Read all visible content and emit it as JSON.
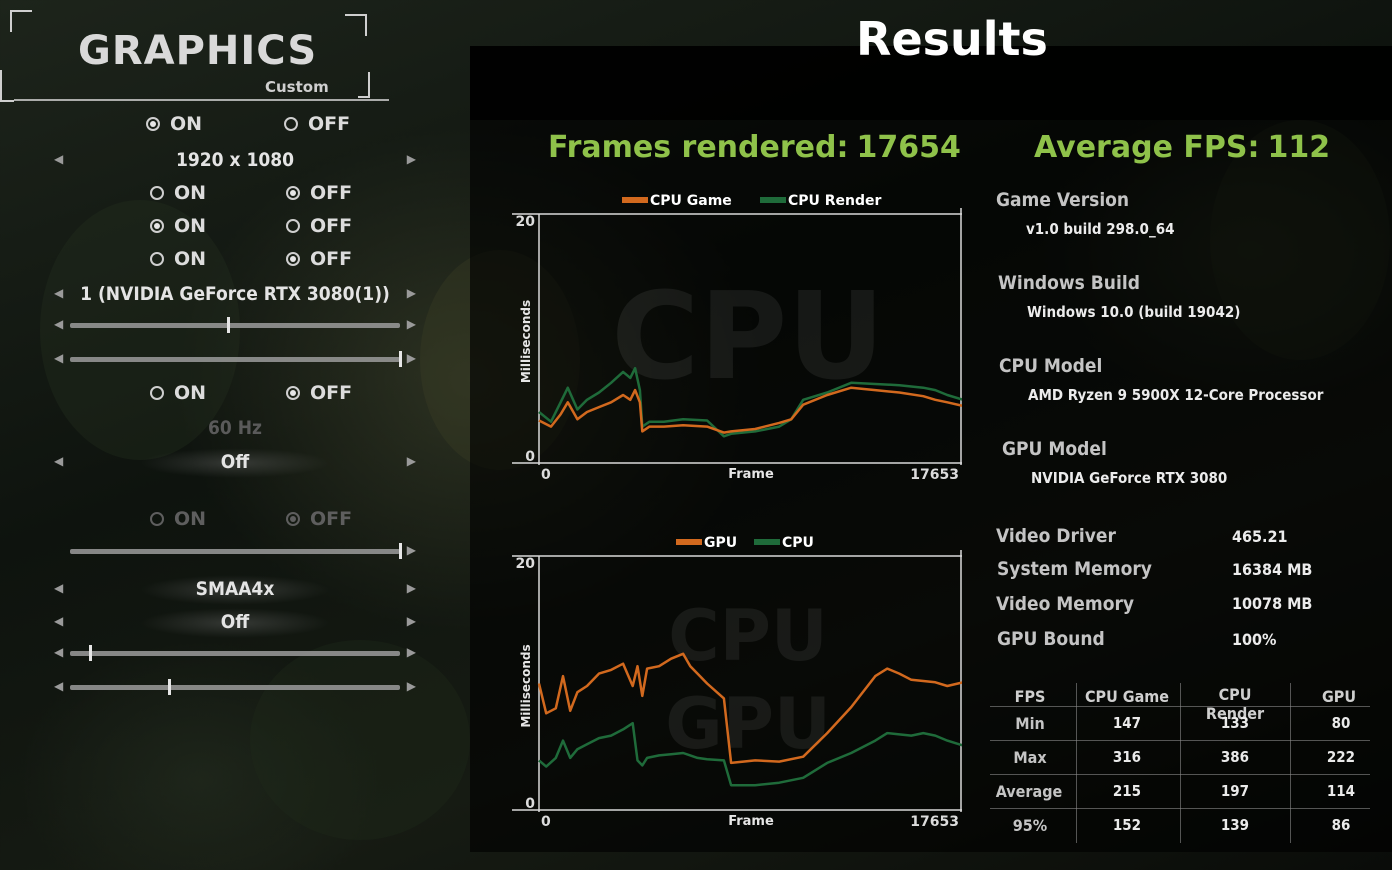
{
  "graphics_panel": {
    "title": "GRAPHICS",
    "subtitle": "Custom",
    "on_label": "ON",
    "off_label": "OFF",
    "radio_rows": [
      {
        "selected": "on",
        "enabled": true
      },
      {
        "selected": "off",
        "enabled": true
      },
      {
        "selected": "on",
        "enabled": true
      },
      {
        "selected": "off",
        "enabled": true
      },
      {
        "selected": "off",
        "enabled": true
      },
      {
        "selected": "off",
        "enabled": false
      }
    ],
    "resolution": "1920 x 1080",
    "adapter": "1 (NVIDIA GeForce RTX 3080(1))",
    "refresh_rate": "60 Hz",
    "selector_off_1": "Off",
    "antialiasing": "SMAA4x",
    "selector_off_2": "Off",
    "slider_levels": [
      0.48,
      1.0,
      1.0,
      0.06,
      0.3
    ]
  },
  "results": {
    "title": "Results",
    "frames_rendered_label": "Frames rendered:",
    "frames_rendered_value": "17654",
    "average_fps_label": "Average FPS:",
    "average_fps_value": "112",
    "info": [
      {
        "label": "Game Version",
        "value": "v1.0 build 298.0_64"
      },
      {
        "label": "Windows Build",
        "value": "Windows 10.0 (build 19042)"
      },
      {
        "label": "CPU Model",
        "value": "AMD Ryzen 9 5900X 12-Core Processor"
      },
      {
        "label": "GPU Model",
        "value": "NVIDIA GeForce RTX 3080"
      }
    ],
    "specs": [
      {
        "label": "Video Driver",
        "value": "465.21"
      },
      {
        "label": "System Memory",
        "value": "16384 MB"
      },
      {
        "label": "Video Memory",
        "value": "10078 MB"
      },
      {
        "label": "GPU Bound",
        "value": "100%"
      }
    ],
    "table": {
      "headers": [
        "FPS",
        "CPU Game",
        "CPU Render",
        "GPU"
      ],
      "rows": [
        {
          "label": "Min",
          "values": [
            "147",
            "133",
            "80"
          ]
        },
        {
          "label": "Max",
          "values": [
            "316",
            "386",
            "222"
          ]
        },
        {
          "label": "Average",
          "values": [
            "215",
            "197",
            "114"
          ]
        },
        {
          "label": "95%",
          "values": [
            "152",
            "139",
            "86"
          ]
        }
      ]
    }
  },
  "chart_data": [
    {
      "type": "line",
      "watermark": "CPU",
      "xlabel": "Frame",
      "ylabel": "Milliseconds",
      "x_tick_labels": [
        "0",
        "17653"
      ],
      "y_tick_labels": [
        "20",
        "0"
      ],
      "xlim": [
        0,
        17653
      ],
      "ylim": [
        0,
        20
      ],
      "colors": {
        "CPU Game": "#d2691e",
        "CPU Render": "#1f6b3a"
      },
      "series": [
        {
          "name": "CPU Game",
          "x": [
            0,
            500,
            900,
            1200,
            1600,
            2000,
            2500,
            3000,
            3500,
            3800,
            4000,
            4200,
            4300,
            4600,
            5200,
            6000,
            7000,
            7700,
            8000,
            9000,
            10000,
            10500,
            11000,
            12000,
            13000,
            14000,
            15000,
            16000,
            16500,
            17000,
            17653
          ],
          "values": [
            3.5,
            3.0,
            4.0,
            5.0,
            3.6,
            4.2,
            4.6,
            5.0,
            5.6,
            5.2,
            6.0,
            5.0,
            2.6,
            3.0,
            3.0,
            3.1,
            3.0,
            2.5,
            2.6,
            2.8,
            3.3,
            3.6,
            4.8,
            5.6,
            6.2,
            6.0,
            5.8,
            5.5,
            5.2,
            5.0,
            4.7
          ]
        },
        {
          "name": "CPU Render",
          "x": [
            0,
            500,
            900,
            1200,
            1600,
            2000,
            2500,
            3000,
            3500,
            3800,
            4000,
            4200,
            4300,
            4600,
            5200,
            6000,
            7000,
            7700,
            8000,
            9000,
            10000,
            10500,
            11000,
            12000,
            13000,
            14000,
            15000,
            16000,
            16500,
            17000,
            17653
          ],
          "values": [
            4.2,
            3.4,
            5.0,
            6.2,
            4.4,
            5.2,
            5.8,
            6.6,
            7.5,
            7.0,
            7.8,
            6.0,
            3.0,
            3.4,
            3.4,
            3.6,
            3.5,
            2.2,
            2.4,
            2.6,
            3.0,
            3.6,
            5.2,
            5.8,
            6.6,
            6.5,
            6.4,
            6.2,
            6.0,
            5.6,
            5.2
          ]
        }
      ]
    },
    {
      "type": "line",
      "watermark": [
        "CPU",
        "GPU"
      ],
      "xlabel": "Frame",
      "ylabel": "Milliseconds",
      "x_tick_labels": [
        "0",
        "17653"
      ],
      "y_tick_labels": [
        "20",
        "0"
      ],
      "xlim": [
        0,
        17653
      ],
      "ylim": [
        0,
        20
      ],
      "colors": {
        "GPU": "#d2691e",
        "CPU": "#1f6b3a"
      },
      "series": [
        {
          "name": "GPU",
          "x": [
            0,
            300,
            700,
            1000,
            1300,
            1600,
            2000,
            2500,
            3000,
            3500,
            3900,
            4100,
            4300,
            4500,
            5000,
            5500,
            6000,
            6300,
            6600,
            7000,
            7700,
            8000,
            9000,
            10000,
            11000,
            12000,
            13000,
            14000,
            14500,
            15000,
            15500,
            16000,
            16500,
            17000,
            17653
          ],
          "values": [
            10.2,
            7.8,
            8.2,
            10.8,
            8.0,
            9.5,
            10.0,
            11.0,
            11.3,
            11.8,
            10.0,
            11.6,
            9.2,
            11.4,
            11.6,
            12.2,
            12.6,
            11.6,
            11.0,
            10.2,
            9.0,
            3.8,
            4.0,
            3.9,
            4.3,
            6.2,
            8.3,
            10.8,
            11.4,
            11.0,
            10.5,
            10.4,
            10.3,
            10.0,
            10.3
          ]
        },
        {
          "name": "CPU",
          "x": [
            0,
            300,
            700,
            1000,
            1300,
            1600,
            2000,
            2500,
            3000,
            3500,
            3900,
            4100,
            4300,
            4500,
            5000,
            5500,
            6000,
            6300,
            6600,
            7000,
            7700,
            8000,
            9000,
            10000,
            11000,
            12000,
            13000,
            14000,
            14500,
            15000,
            15500,
            16000,
            16500,
            17000,
            17653
          ],
          "values": [
            4.0,
            3.5,
            4.2,
            5.6,
            4.2,
            4.9,
            5.3,
            5.8,
            6.0,
            6.5,
            7.0,
            4.0,
            3.6,
            4.2,
            4.4,
            4.5,
            4.6,
            4.4,
            4.2,
            4.1,
            4.0,
            2.0,
            2.0,
            2.2,
            2.6,
            3.8,
            4.6,
            5.6,
            6.2,
            6.1,
            6.0,
            6.2,
            6.0,
            5.6,
            5.2
          ]
        }
      ]
    }
  ]
}
